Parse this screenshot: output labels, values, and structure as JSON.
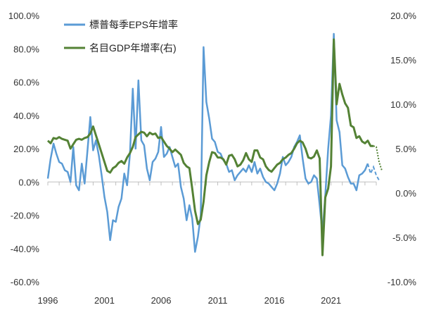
{
  "chart_data": {
    "type": "line",
    "title": "",
    "xlabel": "",
    "ylabel": "",
    "x_ticks": [
      "1996",
      "2001",
      "2006",
      "2011",
      "2016",
      "2021"
    ],
    "x_range": [
      1996,
      2025
    ],
    "ylim_left": [
      -60,
      100
    ],
    "ylim_right": [
      -10,
      20
    ],
    "y_left_ticks": [
      "100.0%",
      "80.0%",
      "60.0%",
      "40.0%",
      "20.0%",
      "0.0%",
      "-20.0%",
      "-40.0%",
      "-60.0%"
    ],
    "y_right_ticks": [
      "20.0%",
      "15.0%",
      "10.0%",
      "5.0%",
      "0.0%",
      "-5.0%",
      "-10.0%"
    ],
    "grid": false,
    "legend_position": "top-left",
    "series": [
      {
        "name": "標普每季EPS年增率",
        "axis": "left",
        "color": "#5b9bd5",
        "points": [
          [
            1996.0,
            2
          ],
          [
            1996.25,
            14
          ],
          [
            1996.5,
            23
          ],
          [
            1996.75,
            17
          ],
          [
            1997.0,
            12
          ],
          [
            1997.25,
            11
          ],
          [
            1997.5,
            7
          ],
          [
            1997.75,
            6
          ],
          [
            1998.0,
            0
          ],
          [
            1998.25,
            21
          ],
          [
            1998.5,
            -2
          ],
          [
            1998.75,
            -5
          ],
          [
            1999.0,
            11
          ],
          [
            1999.25,
            -1
          ],
          [
            1999.5,
            19
          ],
          [
            1999.75,
            39
          ],
          [
            2000.0,
            19
          ],
          [
            2000.25,
            25
          ],
          [
            2000.5,
            16
          ],
          [
            2000.75,
            4
          ],
          [
            2001.0,
            -9
          ],
          [
            2001.25,
            -18
          ],
          [
            2001.5,
            -35
          ],
          [
            2001.75,
            -23
          ],
          [
            2002.0,
            -24
          ],
          [
            2002.25,
            -15
          ],
          [
            2002.5,
            -10
          ],
          [
            2002.75,
            5
          ],
          [
            2003.0,
            -2
          ],
          [
            2003.25,
            17
          ],
          [
            2003.5,
            56
          ],
          [
            2003.75,
            20
          ],
          [
            2004.0,
            61
          ],
          [
            2004.25,
            25
          ],
          [
            2004.5,
            22
          ],
          [
            2004.75,
            8
          ],
          [
            2005.0,
            1
          ],
          [
            2005.25,
            12
          ],
          [
            2005.5,
            14
          ],
          [
            2005.75,
            18
          ],
          [
            2006.0,
            33
          ],
          [
            2006.25,
            15
          ],
          [
            2006.5,
            17
          ],
          [
            2006.75,
            21
          ],
          [
            2007.0,
            15
          ],
          [
            2007.25,
            9
          ],
          [
            2007.5,
            11
          ],
          [
            2007.75,
            -3
          ],
          [
            2008.0,
            -10
          ],
          [
            2008.25,
            -23
          ],
          [
            2008.5,
            -14
          ],
          [
            2008.75,
            -22
          ],
          [
            2009.0,
            -42
          ],
          [
            2009.25,
            -33
          ],
          [
            2009.5,
            -20
          ],
          [
            2009.75,
            81
          ],
          [
            2010.0,
            48
          ],
          [
            2010.25,
            38
          ],
          [
            2010.5,
            26
          ],
          [
            2010.75,
            24
          ],
          [
            2011.0,
            18
          ],
          [
            2011.25,
            17
          ],
          [
            2011.5,
            13
          ],
          [
            2011.75,
            11
          ],
          [
            2012.0,
            6
          ],
          [
            2012.25,
            7
          ],
          [
            2012.5,
            1
          ],
          [
            2012.75,
            4
          ],
          [
            2013.0,
            6
          ],
          [
            2013.25,
            8
          ],
          [
            2013.5,
            6
          ],
          [
            2013.75,
            10
          ],
          [
            2014.0,
            6
          ],
          [
            2014.25,
            12
          ],
          [
            2014.5,
            5
          ],
          [
            2014.75,
            8
          ],
          [
            2015.0,
            3
          ],
          [
            2015.25,
            0
          ],
          [
            2015.5,
            -1
          ],
          [
            2015.75,
            -3
          ],
          [
            2016.0,
            -5
          ],
          [
            2016.25,
            -1
          ],
          [
            2016.5,
            5
          ],
          [
            2016.75,
            15
          ],
          [
            2017.0,
            10
          ],
          [
            2017.25,
            12
          ],
          [
            2017.5,
            15
          ],
          [
            2017.75,
            21
          ],
          [
            2018.0,
            24
          ],
          [
            2018.25,
            28
          ],
          [
            2018.5,
            14
          ],
          [
            2018.75,
            2
          ],
          [
            2019.0,
            -1
          ],
          [
            2019.25,
            0
          ],
          [
            2019.5,
            4
          ],
          [
            2019.75,
            2
          ],
          [
            2020.0,
            -14
          ],
          [
            2020.25,
            -31
          ],
          [
            2020.5,
            -8
          ],
          [
            2020.75,
            20
          ],
          [
            2021.0,
            40
          ],
          [
            2021.25,
            89
          ],
          [
            2021.5,
            37
          ],
          [
            2021.75,
            30
          ],
          [
            2022.0,
            10
          ],
          [
            2022.25,
            8
          ],
          [
            2022.5,
            3
          ],
          [
            2022.75,
            -1
          ],
          [
            2023.0,
            -1
          ],
          [
            2023.25,
            -5
          ],
          [
            2023.5,
            4
          ],
          [
            2023.75,
            5
          ],
          [
            2024.0,
            7
          ],
          [
            2024.25,
            11
          ]
        ],
        "forecast_points": [
          [
            2024.25,
            11
          ],
          [
            2024.5,
            5
          ],
          [
            2024.75,
            9
          ],
          [
            2025.0,
            4
          ],
          [
            2025.25,
            1
          ]
        ]
      },
      {
        "name": "名目GDP年增率(右)",
        "axis": "right",
        "color": "#548235",
        "points": [
          [
            1996.0,
            5.9
          ],
          [
            1996.25,
            5.6
          ],
          [
            1996.5,
            6.2
          ],
          [
            1996.75,
            6.1
          ],
          [
            1997.0,
            6.3
          ],
          [
            1997.25,
            6.1
          ],
          [
            1997.5,
            6.0
          ],
          [
            1997.75,
            5.9
          ],
          [
            1998.0,
            5.0
          ],
          [
            1998.25,
            5.5
          ],
          [
            1998.5,
            6.0
          ],
          [
            1998.75,
            6.1
          ],
          [
            1999.0,
            6.0
          ],
          [
            1999.25,
            6.2
          ],
          [
            1999.5,
            6.3
          ],
          [
            1999.75,
            6.7
          ],
          [
            2000.0,
            7.5
          ],
          [
            2000.25,
            6.5
          ],
          [
            2000.5,
            5.5
          ],
          [
            2000.75,
            4.5
          ],
          [
            2001.0,
            3.5
          ],
          [
            2001.25,
            2.5
          ],
          [
            2001.5,
            2.3
          ],
          [
            2001.75,
            2.8
          ],
          [
            2002.0,
            3.0
          ],
          [
            2002.25,
            3.4
          ],
          [
            2002.5,
            3.6
          ],
          [
            2002.75,
            3.3
          ],
          [
            2003.0,
            4.0
          ],
          [
            2003.25,
            4.5
          ],
          [
            2003.5,
            5.2
          ],
          [
            2003.75,
            6.3
          ],
          [
            2004.0,
            6.6
          ],
          [
            2004.25,
            6.9
          ],
          [
            2004.5,
            6.8
          ],
          [
            2004.75,
            6.4
          ],
          [
            2005.0,
            6.8
          ],
          [
            2005.25,
            6.6
          ],
          [
            2005.5,
            6.7
          ],
          [
            2005.75,
            6.2
          ],
          [
            2006.0,
            6.3
          ],
          [
            2006.25,
            5.8
          ],
          [
            2006.5,
            5.3
          ],
          [
            2006.75,
            5.0
          ],
          [
            2007.0,
            4.6
          ],
          [
            2007.25,
            4.9
          ],
          [
            2007.5,
            4.6
          ],
          [
            2007.75,
            4.3
          ],
          [
            2008.0,
            3.4
          ],
          [
            2008.25,
            3.0
          ],
          [
            2008.5,
            2.8
          ],
          [
            2008.75,
            0.5
          ],
          [
            2009.0,
            -2.0
          ],
          [
            2009.25,
            -3.5
          ],
          [
            2009.5,
            -3.0
          ],
          [
            2009.75,
            -1.0
          ],
          [
            2010.0,
            2.0
          ],
          [
            2010.25,
            3.5
          ],
          [
            2010.5,
            4.6
          ],
          [
            2010.75,
            4.5
          ],
          [
            2011.0,
            4.0
          ],
          [
            2011.25,
            4.0
          ],
          [
            2011.5,
            3.8
          ],
          [
            2011.75,
            3.2
          ],
          [
            2012.0,
            4.2
          ],
          [
            2012.25,
            4.3
          ],
          [
            2012.5,
            3.8
          ],
          [
            2012.75,
            3.0
          ],
          [
            2013.0,
            3.2
          ],
          [
            2013.25,
            3.7
          ],
          [
            2013.5,
            4.5
          ],
          [
            2013.75,
            3.8
          ],
          [
            2014.0,
            3.5
          ],
          [
            2014.25,
            4.8
          ],
          [
            2014.5,
            4.8
          ],
          [
            2014.75,
            4.0
          ],
          [
            2015.0,
            3.8
          ],
          [
            2015.25,
            3.0
          ],
          [
            2015.5,
            2.6
          ],
          [
            2015.75,
            2.4
          ],
          [
            2016.0,
            2.8
          ],
          [
            2016.25,
            3.2
          ],
          [
            2016.5,
            3.4
          ],
          [
            2016.75,
            3.8
          ],
          [
            2017.0,
            4.0
          ],
          [
            2017.25,
            4.3
          ],
          [
            2017.5,
            4.5
          ],
          [
            2017.75,
            5.0
          ],
          [
            2018.0,
            5.6
          ],
          [
            2018.25,
            5.9
          ],
          [
            2018.5,
            5.7
          ],
          [
            2018.75,
            5.0
          ],
          [
            2019.0,
            4.0
          ],
          [
            2019.25,
            3.9
          ],
          [
            2019.5,
            4.1
          ],
          [
            2019.75,
            4.8
          ],
          [
            2020.0,
            3.9
          ],
          [
            2020.25,
            -7.0
          ],
          [
            2020.5,
            -0.5
          ],
          [
            2020.75,
            0.5
          ],
          [
            2021.0,
            3.0
          ],
          [
            2021.25,
            17.3
          ],
          [
            2021.5,
            10.0
          ],
          [
            2021.75,
            12.3
          ],
          [
            2022.0,
            11.1
          ],
          [
            2022.25,
            10.1
          ],
          [
            2022.5,
            9.6
          ],
          [
            2022.75,
            7.6
          ],
          [
            2023.0,
            7.4
          ],
          [
            2023.25,
            6.2
          ],
          [
            2023.5,
            6.4
          ],
          [
            2023.75,
            5.8
          ],
          [
            2024.0,
            5.6
          ],
          [
            2024.25,
            5.9
          ],
          [
            2024.5,
            5.3
          ],
          [
            2024.75,
            5.3
          ]
        ],
        "forecast_points": [
          [
            2024.75,
            5.3
          ],
          [
            2025.0,
            5.2
          ],
          [
            2025.25,
            3.5
          ],
          [
            2025.5,
            2.5
          ]
        ]
      }
    ]
  }
}
